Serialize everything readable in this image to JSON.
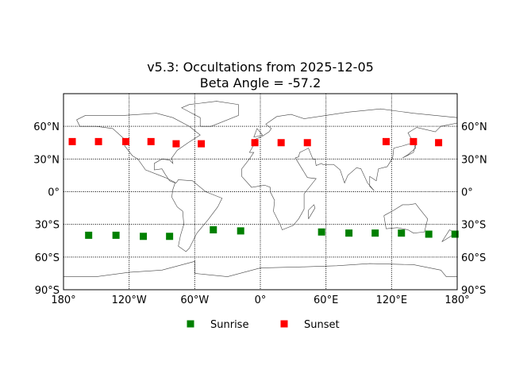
{
  "chart_data": {
    "type": "scatter",
    "title_line1": "v5.3: Occultations from 2025-12-05",
    "title_line2": "Beta Angle = -57.2",
    "xlim": [
      -180,
      180
    ],
    "ylim": [
      -90,
      90
    ],
    "grid": true,
    "legend_placement": "bottom-center",
    "x_ticks": [
      {
        "value": -180,
        "label": "180°"
      },
      {
        "value": -120,
        "label": "120°W"
      },
      {
        "value": -60,
        "label": "60°W"
      },
      {
        "value": 0,
        "label": "0°"
      },
      {
        "value": 60,
        "label": "60°E"
      },
      {
        "value": 120,
        "label": "120°E"
      },
      {
        "value": 180,
        "label": "180°"
      }
    ],
    "y_ticks": [
      {
        "value": 60,
        "label": "60°N"
      },
      {
        "value": 30,
        "label": "30°N"
      },
      {
        "value": 0,
        "label": "0°"
      },
      {
        "value": -30,
        "label": "30°S"
      },
      {
        "value": -60,
        "label": "60°S"
      },
      {
        "value": -90,
        "label": "90°S"
      }
    ],
    "series": [
      {
        "name": "Sunrise",
        "color": "#008000",
        "marker": "square",
        "points": [
          [
            -157,
            -40
          ],
          [
            -132,
            -40
          ],
          [
            -107,
            -41
          ],
          [
            -83,
            -41
          ],
          [
            -43,
            -35
          ],
          [
            -18,
            -36
          ],
          [
            56,
            -37
          ],
          [
            81,
            -38
          ],
          [
            105,
            -38
          ],
          [
            129,
            -38
          ],
          [
            154,
            -39
          ],
          [
            178,
            -39
          ]
        ]
      },
      {
        "name": "Sunset",
        "color": "#ff0000",
        "marker": "square",
        "points": [
          [
            -172,
            46
          ],
          [
            -148,
            46
          ],
          [
            -123,
            46
          ],
          [
            -100,
            46
          ],
          [
            -77,
            44
          ],
          [
            -54,
            44
          ],
          [
            -5,
            45
          ],
          [
            19,
            45
          ],
          [
            43,
            45
          ],
          [
            115,
            46
          ],
          [
            140,
            46
          ],
          [
            163,
            45
          ]
        ]
      }
    ]
  }
}
